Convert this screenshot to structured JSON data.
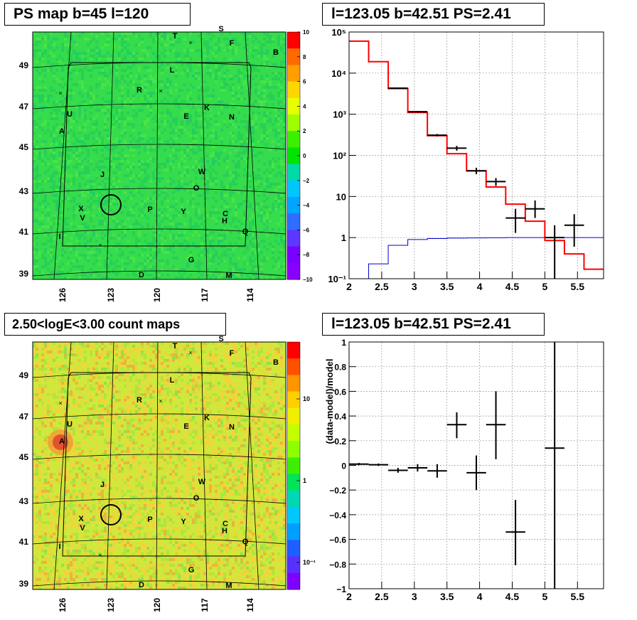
{
  "panels": {
    "map_top": {
      "title": "PS map b=45 l=120"
    },
    "spec_top": {
      "title": "l=123.05 b=42.51 PS=2.41"
    },
    "map_bottom": {
      "title": "2.50<logE<3.00 count maps"
    },
    "spec_bottom": {
      "title": "l=123.05 b=42.51 PS=2.41"
    }
  },
  "colors": {
    "data": "#000000",
    "model": "#ff0000",
    "background": "#0000cc",
    "map_green": "#2fd94f",
    "map_yellow": "#d7e83a",
    "grid": "#999999"
  },
  "maps": {
    "lon_ticks": [
      "126",
      "123",
      "120",
      "117",
      "114"
    ],
    "lat_ticks": [
      "39",
      "41",
      "43",
      "45",
      "47",
      "49"
    ],
    "top_scale_ticks": [
      "10",
      "8",
      "6",
      "4",
      "2",
      "0",
      "−2",
      "−4",
      "−6",
      "−8",
      "−10"
    ],
    "bottom_scale_ticks": [
      "10",
      "1",
      "10⁻¹"
    ],
    "sources": [
      {
        "name": "S"
      },
      {
        "name": "T"
      },
      {
        "name": "F"
      },
      {
        "name": "B"
      },
      {
        "name": "L"
      },
      {
        "name": "R"
      },
      {
        "name": "K"
      },
      {
        "name": "E"
      },
      {
        "name": "N"
      },
      {
        "name": "U"
      },
      {
        "name": "A"
      },
      {
        "name": "J"
      },
      {
        "name": "W"
      },
      {
        "name": "O"
      },
      {
        "name": "X"
      },
      {
        "name": "V"
      },
      {
        "name": "P"
      },
      {
        "name": "Y"
      },
      {
        "name": "C"
      },
      {
        "name": "H"
      },
      {
        "name": "Q"
      },
      {
        "name": "I"
      },
      {
        "name": "G"
      },
      {
        "name": "D"
      },
      {
        "name": "M"
      }
    ]
  },
  "chart_data": [
    {
      "type": "line",
      "log_y": true,
      "title": "l=123.05 b=42.51 PS=2.41",
      "xlim": [
        2,
        5.9
      ],
      "ylim": [
        0.1,
        100000
      ],
      "x_ticks": [
        "2",
        "2.5",
        "3",
        "3.5",
        "4",
        "4.5",
        "5",
        "5.5"
      ],
      "y_ticks": [
        {
          "value": 0.1,
          "label": "10⁻¹"
        },
        {
          "value": 1,
          "label": "1"
        },
        {
          "value": 10,
          "label": "10"
        },
        {
          "value": 100,
          "label": "10²"
        },
        {
          "value": 1000,
          "label": "10³"
        },
        {
          "value": 10000,
          "label": "10⁴"
        },
        {
          "value": 100000,
          "label": "10⁵"
        }
      ],
      "grid": true,
      "model_bins": [
        {
          "x0": 2.0,
          "x1": 2.3,
          "y": 60000
        },
        {
          "x0": 2.3,
          "x1": 2.6,
          "y": 19000
        },
        {
          "x0": 2.6,
          "x1": 2.9,
          "y": 4200
        },
        {
          "x0": 2.9,
          "x1": 3.2,
          "y": 1100
        },
        {
          "x0": 3.2,
          "x1": 3.5,
          "y": 300
        },
        {
          "x0": 3.5,
          "x1": 3.8,
          "y": 110
        },
        {
          "x0": 3.8,
          "x1": 4.1,
          "y": 42
        },
        {
          "x0": 4.1,
          "x1": 4.4,
          "y": 17
        },
        {
          "x0": 4.4,
          "x1": 4.7,
          "y": 6.5
        },
        {
          "x0": 4.7,
          "x1": 5.0,
          "y": 2.5
        },
        {
          "x0": 5.0,
          "x1": 5.3,
          "y": 0.85
        },
        {
          "x0": 5.3,
          "x1": 5.6,
          "y": 0.4
        },
        {
          "x0": 5.6,
          "x1": 5.9,
          "y": 0.17
        }
      ],
      "background_bins": [
        {
          "x0": 2.3,
          "x1": 2.6,
          "y": 0.23
        },
        {
          "x0": 2.6,
          "x1": 2.9,
          "y": 0.65
        },
        {
          "x0": 2.9,
          "x1": 3.2,
          "y": 0.9
        },
        {
          "x0": 3.2,
          "x1": 3.5,
          "y": 0.95
        },
        {
          "x0": 3.5,
          "x1": 3.8,
          "y": 0.97
        },
        {
          "x0": 3.8,
          "x1": 4.1,
          "y": 0.98
        },
        {
          "x0": 4.1,
          "x1": 4.4,
          "y": 0.99
        },
        {
          "x0": 4.4,
          "x1": 4.7,
          "y": 1.0
        },
        {
          "x0": 4.7,
          "x1": 5.0,
          "y": 1.0
        },
        {
          "x0": 5.0,
          "x1": 5.3,
          "y": 1.0
        },
        {
          "x0": 5.3,
          "x1": 5.6,
          "y": 1.0
        },
        {
          "x0": 5.6,
          "x1": 5.9,
          "y": 1.0
        }
      ],
      "data_points": [
        {
          "x": 2.75,
          "xerr": 0.15,
          "y": 4300,
          "ylo": 4200,
          "yhi": 4400
        },
        {
          "x": 3.05,
          "xerr": 0.15,
          "y": 1150,
          "ylo": 1100,
          "yhi": 1200
        },
        {
          "x": 3.35,
          "xerr": 0.15,
          "y": 310,
          "ylo": 290,
          "yhi": 330
        },
        {
          "x": 3.65,
          "xerr": 0.15,
          "y": 150,
          "ylo": 130,
          "yhi": 170
        },
        {
          "x": 3.95,
          "xerr": 0.15,
          "y": 42,
          "ylo": 35,
          "yhi": 50
        },
        {
          "x": 4.25,
          "xerr": 0.15,
          "y": 23,
          "ylo": 18,
          "yhi": 28
        },
        {
          "x": 4.55,
          "xerr": 0.15,
          "y": 3,
          "ylo": 1.3,
          "yhi": 5
        },
        {
          "x": 4.85,
          "xerr": 0.15,
          "y": 5,
          "ylo": 3,
          "yhi": 8
        },
        {
          "x": 5.15,
          "xerr": 0.15,
          "y": 1.0,
          "ylo": 0.1,
          "yhi": 2
        },
        {
          "x": 5.45,
          "xerr": 0.15,
          "y": 2,
          "ylo": 0.6,
          "yhi": 3.7
        }
      ]
    },
    {
      "type": "scatter",
      "title": "l=123.05 b=42.51 PS=2.41",
      "ylabel": "(data-model)/model",
      "xlim": [
        2,
        5.9
      ],
      "ylim": [
        -1,
        1
      ],
      "x_ticks": [
        "2",
        "2.5",
        "3",
        "3.5",
        "4",
        "4.5",
        "5",
        "5.5"
      ],
      "y_ticks": [
        "1",
        "0.8",
        "0.6",
        "0.4",
        "0.2",
        "0",
        "−0.2",
        "−0.4",
        "−0.6",
        "−0.8",
        "−1"
      ],
      "grid": true,
      "data_points": [
        {
          "x": 2.15,
          "xerr": 0.15,
          "y": 0.01,
          "ylo": 0.0,
          "yhi": 0.02
        },
        {
          "x": 2.45,
          "xerr": 0.15,
          "y": 0.005,
          "ylo": -0.005,
          "yhi": 0.015
        },
        {
          "x": 2.75,
          "xerr": 0.15,
          "y": -0.04,
          "ylo": -0.06,
          "yhi": -0.02
        },
        {
          "x": 3.05,
          "xerr": 0.15,
          "y": -0.02,
          "ylo": -0.05,
          "yhi": 0.01
        },
        {
          "x": 3.35,
          "xerr": 0.15,
          "y": -0.045,
          "ylo": -0.1,
          "yhi": 0.01
        },
        {
          "x": 3.65,
          "xerr": 0.15,
          "y": 0.33,
          "ylo": 0.22,
          "yhi": 0.43
        },
        {
          "x": 3.95,
          "xerr": 0.15,
          "y": -0.06,
          "ylo": -0.2,
          "yhi": 0.08
        },
        {
          "x": 4.25,
          "xerr": 0.15,
          "y": 0.33,
          "ylo": 0.05,
          "yhi": 0.6
        },
        {
          "x": 4.55,
          "xerr": 0.15,
          "y": -0.54,
          "ylo": -0.81,
          "yhi": -0.28
        },
        {
          "x": 5.15,
          "xerr": 0.15,
          "y": 0.14,
          "ylo": -1.0,
          "yhi": 1.0
        }
      ]
    }
  ]
}
